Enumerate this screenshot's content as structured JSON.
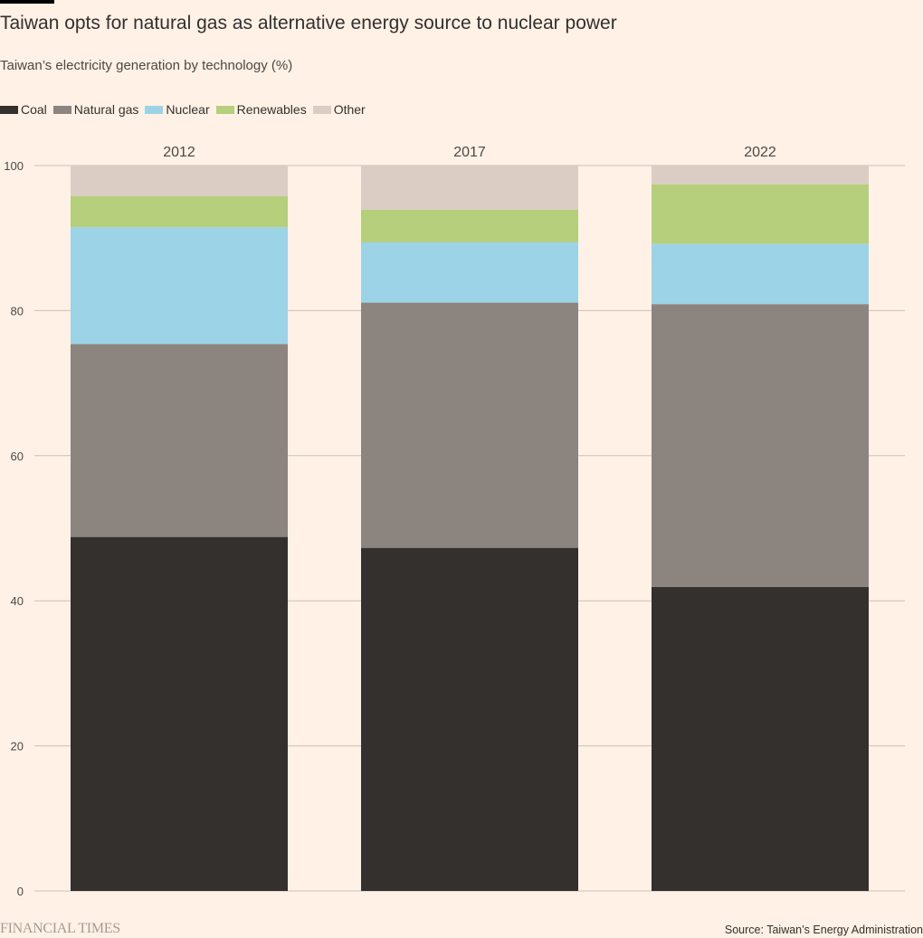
{
  "header": {
    "title": "Taiwan opts for natural gas as alternative energy source to nuclear power",
    "subtitle": "Taiwan’s electricity generation by technology (%)"
  },
  "footer": {
    "logo": "FINANCIAL TIMES",
    "source": "Source: Taiwan’s Energy Administration"
  },
  "chart_data": {
    "type": "bar",
    "stacked": true,
    "title": "Taiwan opts for natural gas as alternative energy source to nuclear power",
    "subtitle": "Taiwan’s electricity generation by technology (%)",
    "xlabel": "",
    "ylabel": "",
    "categories": [
      "2012",
      "2017",
      "2022"
    ],
    "ylim": [
      0,
      100
    ],
    "yticks": [
      0,
      20,
      40,
      60,
      80,
      100
    ],
    "grid": true,
    "legend_position": "top-left",
    "series": [
      {
        "name": "Coal",
        "color": "#33302e",
        "values": [
          48.8,
          47.3,
          41.9
        ]
      },
      {
        "name": "Natural gas",
        "color": "#8c847f",
        "values": [
          26.6,
          33.8,
          39.0
        ]
      },
      {
        "name": "Nuclear",
        "color": "#9cd3e6",
        "values": [
          16.1,
          8.3,
          8.3
        ]
      },
      {
        "name": "Renewables",
        "color": "#b5cf7d",
        "values": [
          4.3,
          4.5,
          8.2
        ]
      },
      {
        "name": "Other",
        "color": "#dbcdc3",
        "values": [
          4.2,
          6.1,
          2.6
        ]
      }
    ]
  }
}
